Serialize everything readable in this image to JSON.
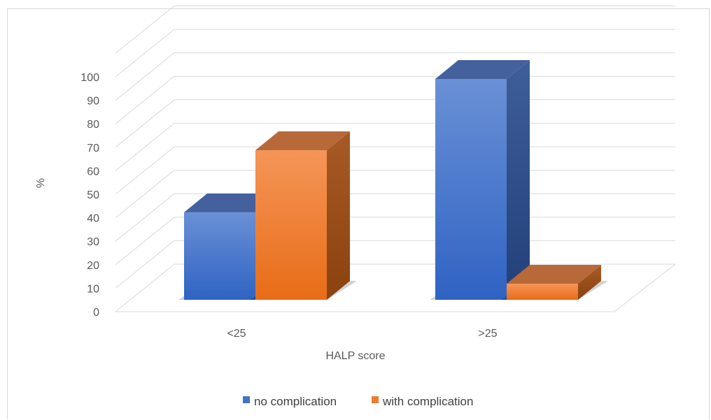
{
  "chart_data": {
    "type": "bar",
    "style": "3d-clustered-column",
    "categories": [
      "<25",
      ">25"
    ],
    "series": [
      {
        "name": "no complication",
        "values": [
          38,
          96
        ],
        "color": "#4472C4"
      },
      {
        "name": "with complication",
        "values": [
          65,
          7
        ],
        "color": "#ED7D31"
      }
    ],
    "xlabel": "HALP score",
    "ylabel": "%",
    "ylim": [
      0,
      100
    ],
    "yticks": [
      0,
      10,
      20,
      30,
      40,
      50,
      60,
      70,
      80,
      90,
      100
    ],
    "grid": true,
    "legend_position": "bottom"
  }
}
